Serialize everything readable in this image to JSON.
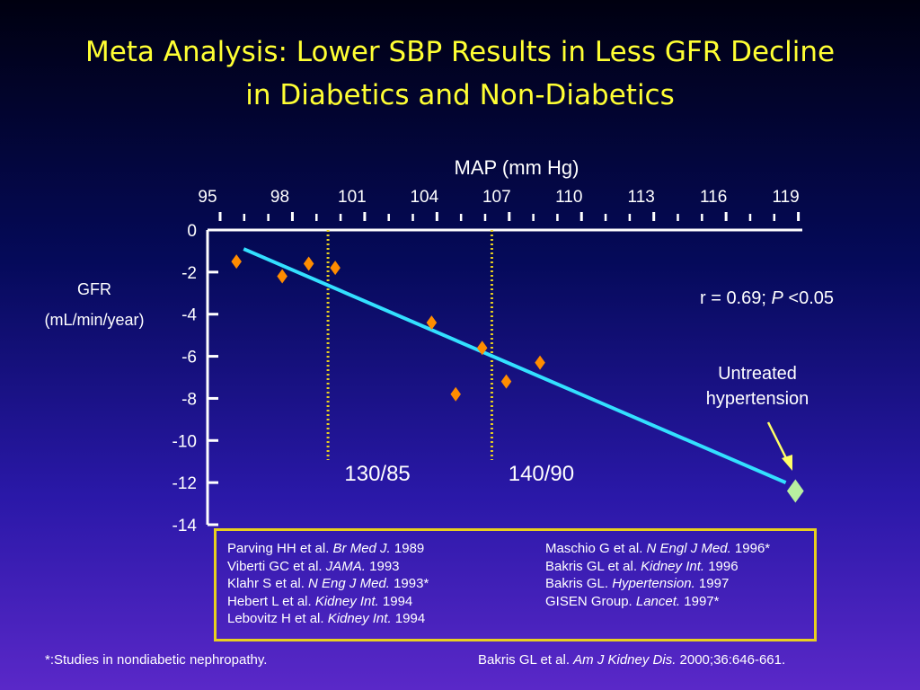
{
  "title": {
    "line1": "Meta Analysis: Lower SBP Results in Less GFR Decline",
    "line2": "in Diabetics and Non-Diabetics"
  },
  "colors": {
    "title": "#ffff33",
    "points": "#ff8c00",
    "untreated_point": "#b8f0a0",
    "regression_line": "#33e0ff",
    "reference_lines": "#e8d020",
    "axes": "#ffffff"
  },
  "chart_data": {
    "type": "scatter",
    "xlabel": "MAP (mm Hg)",
    "ylabel_line1": "GFR",
    "ylabel_line2": "(mL/min/year)",
    "x_axis_position": "top",
    "xlim": [
      95,
      119.5
    ],
    "ylim": [
      -14,
      0
    ],
    "x_ticks": [
      95,
      98,
      101,
      104,
      107,
      110,
      113,
      116,
      119
    ],
    "y_ticks": [
      0,
      -2,
      -4,
      -6,
      -8,
      -10,
      -12,
      -14
    ],
    "series": [
      {
        "x": [
          96.2,
          98.1,
          99.2,
          100.3,
          104.3,
          105.3,
          106.4,
          107.4,
          108.8
        ],
        "y": [
          -1.5,
          -2.2,
          -1.6,
          -1.8,
          -4.4,
          -7.8,
          -5.6,
          -7.2,
          -6.3
        ]
      },
      {
        "x": [
          119.4
        ],
        "y": [
          -12.4
        ]
      }
    ],
    "regression": {
      "x": [
        96.5,
        119
      ],
      "y": [
        -0.9,
        -12.0
      ]
    },
    "reference_lines": [
      {
        "x": 100,
        "label": "130/85"
      },
      {
        "x": 106.8,
        "label": "140/90"
      }
    ],
    "annotations": {
      "correlation_prefix": "r = 0.69; ",
      "correlation_p": "P",
      "correlation_suffix": " <0.05",
      "untreated_line1": "Untreated",
      "untreated_line2": "hypertension"
    },
    "grid": false
  },
  "citations_left": [
    {
      "pre": "Parving HH et al. ",
      "journal": "Br Med J.",
      "post": " 1989"
    },
    {
      "pre": "Viberti GC et al. ",
      "journal": "JAMA.",
      "post": " 1993"
    },
    {
      "pre": "Klahr S et al. ",
      "journal": "N Eng J Med.",
      "post": " 1993*"
    },
    {
      "pre": "Hebert L et al. ",
      "journal": "Kidney Int.",
      "post": " 1994"
    },
    {
      "pre": "Lebovitz H et al. ",
      "journal": "Kidney Int.",
      "post": " 1994"
    }
  ],
  "citations_right": [
    {
      "pre": "Maschio G et al. ",
      "journal": "N Engl J Med.",
      "post": " 1996*"
    },
    {
      "pre": "Bakris GL et al. ",
      "journal": "Kidney Int.",
      "post": " 1996"
    },
    {
      "pre": "Bakris GL. ",
      "journal": "Hypertension.",
      "post": " 1997"
    },
    {
      "pre": "GISEN Group. ",
      "journal": "Lancet.",
      "post": " 1997*"
    }
  ],
  "footnote_left": "*:Studies in nondiabetic nephropathy.",
  "footnote_right": {
    "pre": "Bakris GL et al. ",
    "journal": "Am J Kidney Dis.",
    "post": " 2000;36:646-661."
  }
}
